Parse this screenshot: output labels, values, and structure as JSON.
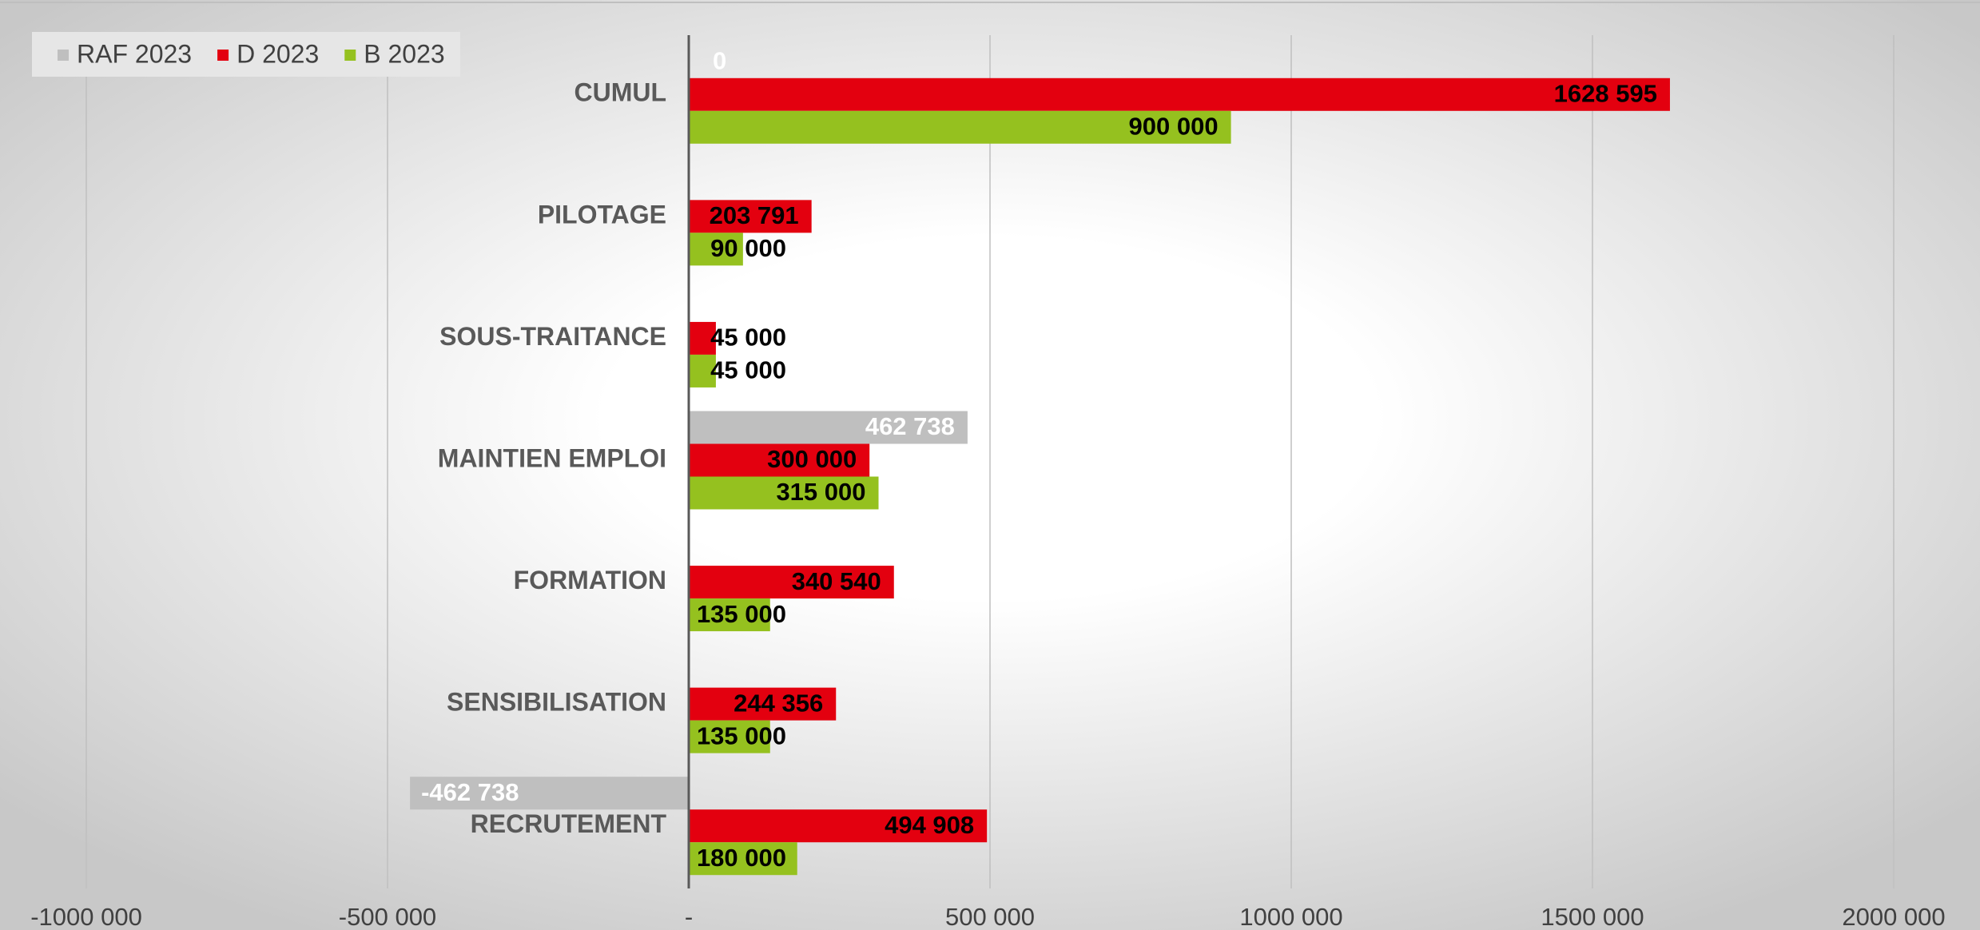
{
  "chart_data": {
    "type": "hbar",
    "categories": [
      "CUMUL",
      "PILOTAGE",
      "SOUS-TRAITANCE",
      "MAINTIEN EMPLOI",
      "FORMATION",
      "SENSIBILISATION",
      "RECRUTEMENT"
    ],
    "series": [
      {
        "name": "RAF 2023",
        "color": "#bfbfbf",
        "values": [
          0,
          null,
          null,
          462738,
          null,
          null,
          -462738
        ],
        "value_labels": [
          "0",
          null,
          null,
          "462 738",
          null,
          null,
          "-462 738"
        ]
      },
      {
        "name": "D 2023",
        "color": "#e3000f",
        "values": [
          1628595,
          203791,
          45000,
          300000,
          340540,
          244356,
          494908
        ],
        "value_labels": [
          "1628 595",
          "203 791",
          "45 000",
          "300 000",
          "340 540",
          "244 356",
          "494 908"
        ]
      },
      {
        "name": "B 2023",
        "color": "#95c11f",
        "values": [
          900000,
          90000,
          45000,
          315000,
          135000,
          135000,
          180000
        ],
        "value_labels": [
          "900 000",
          "90 000",
          "45 000",
          "315 000",
          "135 000",
          "135 000",
          "180 000"
        ]
      }
    ],
    "xlim": [
      -1000000,
      2000000
    ],
    "xticks": [
      {
        "value": -1000000,
        "label": "-1000 000"
      },
      {
        "value": -500000,
        "label": "-500 000"
      },
      {
        "value": 0,
        "label": "-"
      },
      {
        "value": 500000,
        "label": "500 000"
      },
      {
        "value": 1000000,
        "label": "1000 000"
      },
      {
        "value": 1500000,
        "label": "1500 000"
      },
      {
        "value": 2000000,
        "label": "2000 000"
      }
    ],
    "grid": true,
    "legend": "top-left"
  }
}
